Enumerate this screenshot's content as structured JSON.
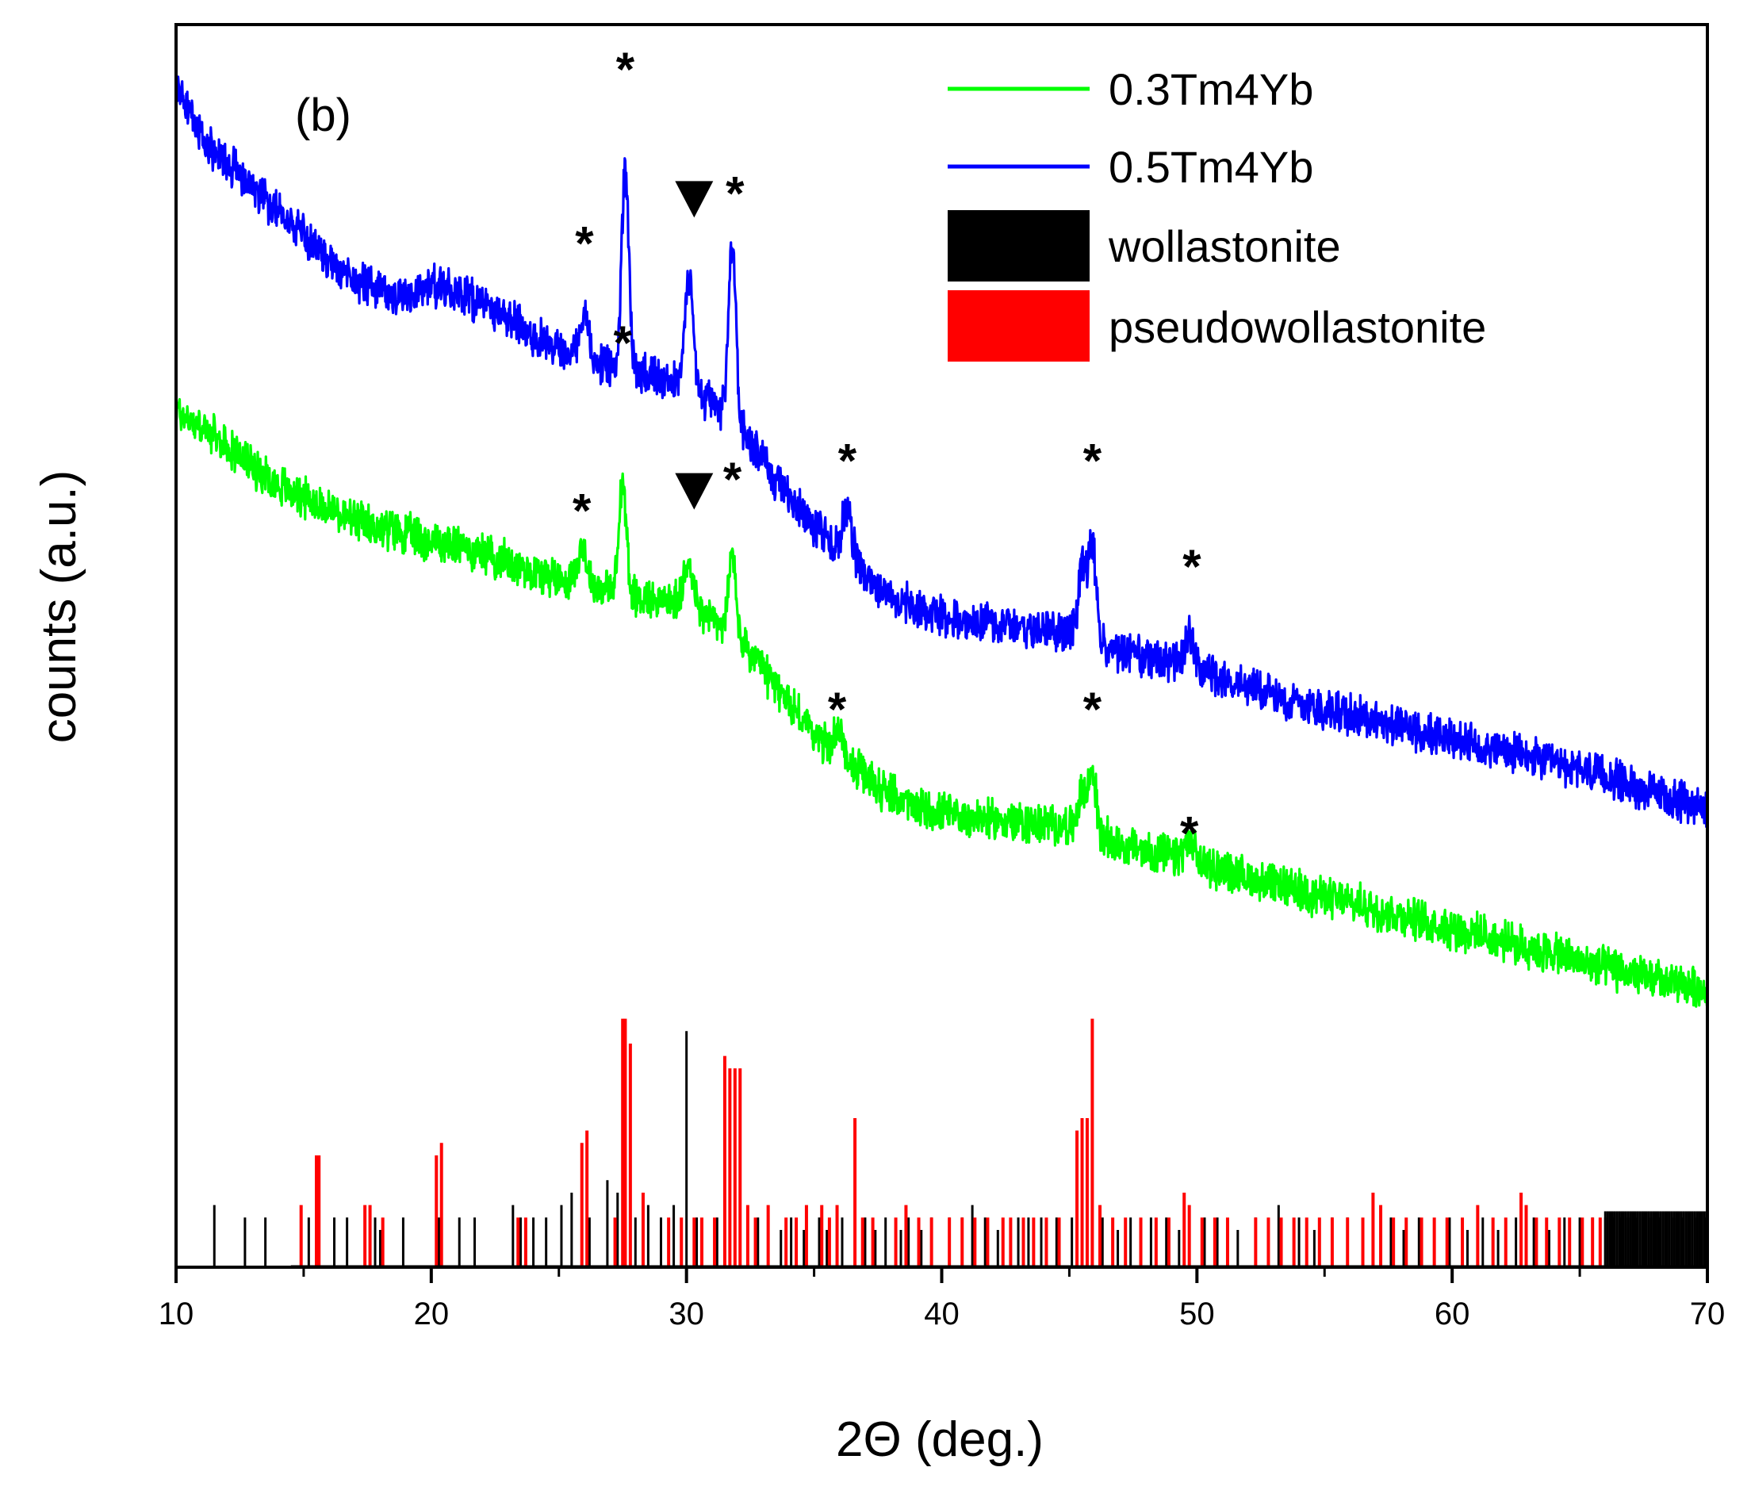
{
  "chart_data": {
    "type": "line",
    "title": "",
    "panel_label": "(b)",
    "xlabel": "2Θ (deg.)",
    "ylabel": "counts (a.u.)",
    "xlim": [
      10,
      70
    ],
    "ylim": [
      0,
      100
    ],
    "xticks": [
      10,
      20,
      30,
      40,
      50,
      60,
      70
    ],
    "xtick_labels": [
      "10",
      "20",
      "30",
      "40",
      "50",
      "60",
      "70"
    ],
    "y_tick_labels_shown": false,
    "grid": false,
    "legend_position": "top-right",
    "legend": [
      {
        "label": "0.3Tm4Yb",
        "color": "#00ff00",
        "kind": "line"
      },
      {
        "label": "0.5Tm4Yb",
        "color": "#0000ff",
        "kind": "line"
      },
      {
        "label": "wollastonite",
        "color": "#000000",
        "kind": "bar"
      },
      {
        "label": "pseudowollastonite",
        "color": "#ff0000",
        "kind": "bar"
      }
    ],
    "series": [
      {
        "name": "0.5Tm4Yb",
        "color": "#0000ff",
        "points": [
          [
            10,
            95
          ],
          [
            11,
            91
          ],
          [
            12,
            89
          ],
          [
            13,
            87
          ],
          [
            14,
            85
          ],
          [
            15,
            83
          ],
          [
            16,
            81
          ],
          [
            17,
            79.5
          ],
          [
            18,
            78.5
          ],
          [
            19,
            78
          ],
          [
            20,
            79
          ],
          [
            21,
            78.5
          ],
          [
            22,
            77.5
          ],
          [
            23,
            76.5
          ],
          [
            24,
            75
          ],
          [
            25,
            74
          ],
          [
            26,
            73
          ],
          [
            27,
            72.5
          ],
          [
            28,
            72
          ],
          [
            29,
            71.8
          ],
          [
            30,
            71
          ],
          [
            31,
            69.5
          ],
          [
            32,
            68
          ],
          [
            33,
            65
          ],
          [
            34,
            62
          ],
          [
            35,
            59.5
          ],
          [
            36,
            57.5
          ],
          [
            37,
            55.5
          ],
          [
            38,
            54
          ],
          [
            39,
            53
          ],
          [
            40,
            52.5
          ],
          [
            41,
            52
          ],
          [
            42,
            51.8
          ],
          [
            43,
            51.5
          ],
          [
            44,
            51.2
          ],
          [
            45,
            51
          ],
          [
            46,
            50
          ],
          [
            47,
            49.5
          ],
          [
            48,
            49
          ],
          [
            49,
            48.5
          ],
          [
            50,
            48
          ],
          [
            51,
            47.3
          ],
          [
            52,
            46.7
          ],
          [
            53,
            46
          ],
          [
            54,
            45.5
          ],
          [
            55,
            45
          ],
          [
            56,
            44.5
          ],
          [
            57,
            44
          ],
          [
            58,
            43.5
          ],
          [
            59,
            43
          ],
          [
            60,
            42.5
          ],
          [
            61,
            42
          ],
          [
            62,
            41.5
          ],
          [
            63,
            41
          ],
          [
            64,
            40.5
          ],
          [
            65,
            40
          ],
          [
            66,
            39.5
          ],
          [
            67,
            38.8
          ],
          [
            68,
            38
          ],
          [
            69,
            37.5
          ],
          [
            70,
            37
          ]
        ],
        "peaks": [
          [
            26.0,
            4,
            0.18
          ],
          [
            27.6,
            16,
            0.14
          ],
          [
            30.1,
            9,
            0.16
          ],
          [
            31.8,
            14,
            0.14
          ],
          [
            36.3,
            4,
            0.2
          ],
          [
            45.5,
            6,
            0.15
          ],
          [
            45.9,
            8,
            0.15
          ],
          [
            49.7,
            2.5,
            0.2
          ]
        ]
      },
      {
        "name": "0.3Tm4Yb",
        "color": "#00ff00",
        "points": [
          [
            10,
            69
          ],
          [
            11,
            67.5
          ],
          [
            12,
            66
          ],
          [
            13,
            64.5
          ],
          [
            14,
            63
          ],
          [
            15,
            62
          ],
          [
            16,
            61
          ],
          [
            17,
            60
          ],
          [
            18,
            59.5
          ],
          [
            19,
            59
          ],
          [
            20,
            58.5
          ],
          [
            21,
            58
          ],
          [
            22,
            57.5
          ],
          [
            23,
            56.8
          ],
          [
            24,
            56
          ],
          [
            25,
            55.5
          ],
          [
            26,
            55
          ],
          [
            27,
            54.5
          ],
          [
            28,
            54
          ],
          [
            29,
            53.8
          ],
          [
            30,
            53.3
          ],
          [
            31,
            52.3
          ],
          [
            32,
            50.5
          ],
          [
            33,
            48
          ],
          [
            34,
            45.5
          ],
          [
            35,
            43
          ],
          [
            36,
            41
          ],
          [
            37,
            39.5
          ],
          [
            38,
            38
          ],
          [
            39,
            37
          ],
          [
            40,
            36.5
          ],
          [
            41,
            36.2
          ],
          [
            42,
            36
          ],
          [
            43,
            35.8
          ],
          [
            44,
            35.6
          ],
          [
            45,
            35.5
          ],
          [
            46,
            34.8
          ],
          [
            47,
            34
          ],
          [
            48,
            33.5
          ],
          [
            49,
            33
          ],
          [
            50,
            32.5
          ],
          [
            51,
            32
          ],
          [
            52,
            31.3
          ],
          [
            53,
            30.8
          ],
          [
            54,
            30.3
          ],
          [
            55,
            29.8
          ],
          [
            56,
            29.3
          ],
          [
            57,
            28.8
          ],
          [
            58,
            28.3
          ],
          [
            59,
            27.8
          ],
          [
            60,
            27.3
          ],
          [
            61,
            26.8
          ],
          [
            62,
            26.2
          ],
          [
            63,
            25.7
          ],
          [
            64,
            25.2
          ],
          [
            65,
            24.6
          ],
          [
            66,
            24.1
          ],
          [
            67,
            23.6
          ],
          [
            68,
            23.1
          ],
          [
            69,
            22.7
          ],
          [
            70,
            22.3
          ]
        ],
        "peaks": [
          [
            25.9,
            3,
            0.18
          ],
          [
            27.5,
            9,
            0.14
          ],
          [
            30.1,
            4,
            0.16
          ],
          [
            31.8,
            6.5,
            0.14
          ],
          [
            36.0,
            2,
            0.2
          ],
          [
            45.5,
            3,
            0.15
          ],
          [
            45.9,
            5,
            0.15
          ],
          [
            49.7,
            1.5,
            0.2
          ]
        ]
      }
    ],
    "reference_bars": [
      {
        "name": "wollastonite",
        "color": "#000000",
        "x": [
          11.5,
          12.7,
          13.5,
          15.2,
          16.2,
          16.7,
          17.8,
          18.0,
          18.9,
          20.3,
          21.1,
          21.7,
          23.2,
          23.5,
          24.0,
          24.5,
          25.1,
          25.5,
          26.2,
          26.9,
          27.3,
          28.0,
          28.5,
          29.0,
          29.5,
          30.0,
          30.4,
          31.2,
          31.7,
          32.8,
          33.2,
          33.7,
          34.1,
          34.6,
          35.2,
          35.5,
          36.1,
          36.6,
          37.0,
          37.4,
          37.8,
          38.4,
          38.7,
          39.2,
          39.6,
          40.3,
          40.8,
          41.2,
          41.7,
          42.2,
          43.0,
          43.4,
          43.9,
          44.5,
          45.1,
          46.3,
          46.9,
          47.4,
          48.2,
          48.8,
          49.3,
          49.7,
          50.3,
          50.8,
          51.6,
          52.3,
          53.2,
          54.0,
          54.6,
          55.3,
          55.9,
          56.5,
          57.2,
          57.6,
          58.1,
          58.7,
          59.3,
          59.9,
          60.6,
          61.2,
          61.8,
          62.5,
          63.2,
          63.8,
          64.4,
          65.0,
          65.5,
          66.0,
          66.3,
          66.6,
          66.9,
          67.2,
          67.5,
          67.8,
          68.1,
          68.4,
          68.7,
          69.0,
          69.3,
          69.6,
          69.9
        ],
        "h": [
          5,
          4,
          4,
          4,
          4,
          4,
          4,
          3,
          4,
          4,
          4,
          4,
          5,
          4,
          4,
          4,
          5,
          6,
          4,
          7,
          6,
          4,
          5,
          4,
          5,
          19,
          4,
          4,
          5,
          4,
          3,
          3,
          4,
          3,
          4,
          3,
          4,
          3,
          4,
          3,
          4,
          3,
          4,
          3,
          4,
          4,
          4,
          5,
          4,
          3,
          4,
          4,
          4,
          4,
          4,
          4,
          3,
          4,
          4,
          4,
          3,
          4,
          4,
          4,
          3,
          4,
          5,
          4,
          3,
          4,
          4,
          3,
          4,
          4,
          3,
          4,
          3,
          4,
          3,
          4,
          3,
          4,
          4,
          3,
          4,
          4,
          4,
          4,
          4,
          4,
          4,
          4,
          4,
          4,
          4,
          4,
          4,
          4,
          4,
          4,
          4
        ]
      },
      {
        "name": "pseudowollastonite",
        "color": "#ff0000",
        "x": [
          14.9,
          15.5,
          15.6,
          17.4,
          17.6,
          18.1,
          20.2,
          20.4,
          23.4,
          23.7,
          25.9,
          26.1,
          27.2,
          27.5,
          27.6,
          27.8,
          28.3,
          29.3,
          29.8,
          30.3,
          30.6,
          31.1,
          31.5,
          31.7,
          31.9,
          32.1,
          32.4,
          32.7,
          33.2,
          33.9,
          34.3,
          34.7,
          35.3,
          35.6,
          35.9,
          36.6,
          36.9,
          37.3,
          38.2,
          38.6,
          39.1,
          39.6,
          40.3,
          40.8,
          41.3,
          41.8,
          42.4,
          42.7,
          43.2,
          43.6,
          44.1,
          44.6,
          45.3,
          45.5,
          45.7,
          45.9,
          46.2,
          46.7,
          47.2,
          47.8,
          48.4,
          48.9,
          49.5,
          49.7,
          50.2,
          50.7,
          51.2,
          52.3,
          52.8,
          53.3,
          53.8,
          54.3,
          54.8,
          55.3,
          55.9,
          56.5,
          56.9,
          57.2,
          57.7,
          58.2,
          58.8,
          59.3,
          59.8,
          60.4,
          61.0,
          61.6,
          62.1,
          62.7,
          62.9,
          63.3,
          63.7,
          64.2,
          64.6,
          65.1,
          65.5,
          65.8
        ],
        "h": [
          5,
          9,
          9,
          5,
          5,
          4,
          9,
          10,
          4,
          4,
          10,
          11,
          4,
          20,
          20,
          18,
          6,
          4,
          4,
          4,
          4,
          4,
          17,
          16,
          16,
          16,
          5,
          4,
          5,
          4,
          4,
          5,
          5,
          4,
          5,
          12,
          4,
          4,
          4,
          5,
          4,
          4,
          4,
          4,
          4,
          4,
          4,
          4,
          4,
          4,
          4,
          4,
          11,
          12,
          12,
          20,
          5,
          4,
          4,
          4,
          4,
          4,
          6,
          5,
          4,
          4,
          4,
          4,
          4,
          4,
          4,
          4,
          4,
          4,
          4,
          4,
          6,
          5,
          4,
          4,
          4,
          4,
          4,
          4,
          5,
          4,
          4,
          6,
          5,
          4,
          4,
          4,
          4,
          4,
          4,
          4
        ]
      }
    ],
    "annotations": {
      "star_label": "*",
      "triangle_label": "▼",
      "stars": [
        [
          26.0,
          83
        ],
        [
          27.6,
          97
        ],
        [
          31.9,
          87
        ],
        [
          36.3,
          65.5
        ],
        [
          45.9,
          65.5
        ],
        [
          49.8,
          57
        ],
        [
          25.9,
          61.5
        ],
        [
          27.5,
          75
        ],
        [
          31.8,
          64
        ],
        [
          35.9,
          45.5
        ],
        [
          45.9,
          45.5
        ],
        [
          49.7,
          35.5
        ]
      ],
      "triangles": [
        [
          30.3,
          86
        ],
        [
          30.3,
          62.5
        ]
      ]
    }
  }
}
